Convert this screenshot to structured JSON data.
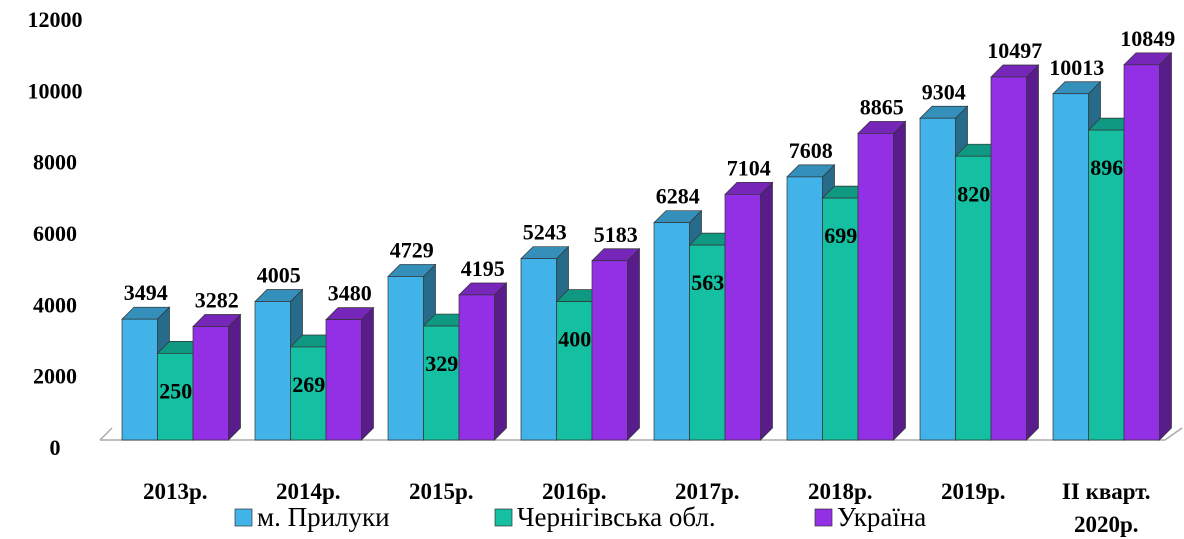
{
  "chart_data": {
    "type": "bar3d",
    "categories": [
      "2013р.",
      "2014р.",
      "2015р.",
      "2016р.",
      "2017р.",
      "2018р.",
      "2019р.",
      "ІІ кварт. 2020р."
    ],
    "series": [
      {
        "name": "м. Прилуки",
        "color": "#41b3e8",
        "values": [
          3494,
          4005,
          4729,
          5243,
          6284,
          7608,
          9304,
          10013
        ]
      },
      {
        "name": "Чернігівська обл.",
        "color": "#14bfa2",
        "values": [
          2504,
          2690,
          3295,
          4002,
          5636,
          6995,
          8206,
          8961
        ]
      },
      {
        "name": "Україна",
        "color": "#9330e6",
        "values": [
          3282,
          3480,
          4195,
          5183,
          7104,
          8865,
          10497,
          10849
        ]
      }
    ],
    "ylim": [
      0,
      12000
    ],
    "yticks": [
      0,
      2000,
      4000,
      6000,
      8000,
      10000,
      12000
    ],
    "legend": "bottom"
  }
}
